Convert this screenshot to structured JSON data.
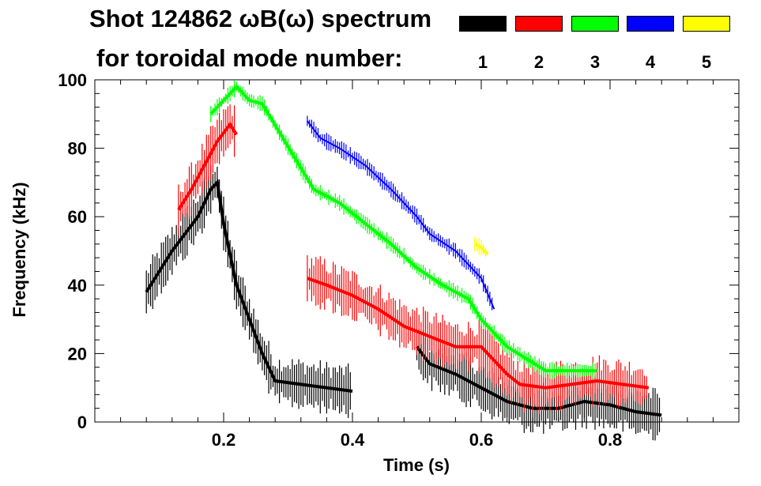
{
  "chart_data": {
    "type": "scatter",
    "title_line1": "Shot 124862 ωB(ω) spectrum",
    "title_line2": "for toroidal mode number:",
    "xlabel": "Time (s)",
    "ylabel": "Frequency (kHz)",
    "xlim": [
      0.0,
      1.0
    ],
    "ylim": [
      0,
      100
    ],
    "xticks": [
      0.2,
      0.4,
      0.6,
      0.8
    ],
    "xtick_labels": [
      "0.2",
      "0.4",
      "0.6",
      "0.8"
    ],
    "yticks": [
      0,
      20,
      40,
      60,
      80,
      100
    ],
    "ytick_labels": [
      "0",
      "20",
      "40",
      "60",
      "80",
      "100"
    ],
    "legend": [
      {
        "label": "1",
        "color": "#000000"
      },
      {
        "label": "2",
        "color": "#ff0000"
      },
      {
        "label": "3",
        "color": "#00ff00"
      },
      {
        "label": "4",
        "color": "#0000ff"
      },
      {
        "label": "5",
        "color": "#ffff00"
      }
    ],
    "series": [
      {
        "name": "n=1",
        "color": "#000000",
        "trend": [
          [
            0.08,
            38
          ],
          [
            0.1,
            44
          ],
          [
            0.12,
            50
          ],
          [
            0.14,
            55
          ],
          [
            0.16,
            60
          ],
          [
            0.18,
            68
          ],
          [
            0.19,
            70
          ],
          [
            0.2,
            58
          ],
          [
            0.22,
            40
          ],
          [
            0.26,
            20
          ],
          [
            0.28,
            12
          ],
          [
            0.32,
            11
          ],
          [
            0.36,
            10
          ],
          [
            0.4,
            9
          ]
        ],
        "trend2": [
          [
            0.5,
            22
          ],
          [
            0.52,
            17
          ],
          [
            0.56,
            14
          ],
          [
            0.6,
            10
          ],
          [
            0.64,
            6
          ],
          [
            0.68,
            4
          ],
          [
            0.72,
            4
          ],
          [
            0.76,
            6
          ],
          [
            0.8,
            5
          ],
          [
            0.84,
            3
          ],
          [
            0.88,
            2
          ]
        ]
      },
      {
        "name": "n=2",
        "color": "#ff0000",
        "trend": [
          [
            0.13,
            62
          ],
          [
            0.15,
            68
          ],
          [
            0.17,
            75
          ],
          [
            0.19,
            82
          ],
          [
            0.21,
            87
          ],
          [
            0.22,
            84
          ]
        ],
        "trend2": [
          [
            0.33,
            42
          ],
          [
            0.36,
            40
          ],
          [
            0.4,
            37
          ],
          [
            0.44,
            33
          ],
          [
            0.48,
            28
          ],
          [
            0.52,
            25
          ],
          [
            0.56,
            22
          ],
          [
            0.6,
            22
          ],
          [
            0.62,
            18
          ],
          [
            0.64,
            14
          ],
          [
            0.66,
            11
          ],
          [
            0.7,
            10
          ],
          [
            0.74,
            11
          ],
          [
            0.78,
            12
          ],
          [
            0.82,
            11
          ],
          [
            0.86,
            10
          ]
        ]
      },
      {
        "name": "n=3",
        "color": "#00ff00",
        "trend": [
          [
            0.18,
            90
          ],
          [
            0.2,
            94
          ],
          [
            0.22,
            98
          ],
          [
            0.24,
            94
          ],
          [
            0.26,
            93
          ],
          [
            0.34,
            68
          ],
          [
            0.38,
            64
          ],
          [
            0.42,
            58
          ],
          [
            0.46,
            52
          ],
          [
            0.5,
            45
          ],
          [
            0.54,
            40
          ],
          [
            0.58,
            36
          ],
          [
            0.6,
            30
          ],
          [
            0.64,
            22
          ],
          [
            0.7,
            15
          ],
          [
            0.78,
            15
          ]
        ]
      },
      {
        "name": "n=4",
        "color": "#0000ff",
        "trend": [
          [
            0.33,
            88
          ],
          [
            0.35,
            83
          ],
          [
            0.38,
            80
          ],
          [
            0.42,
            75
          ],
          [
            0.46,
            68
          ],
          [
            0.5,
            60
          ],
          [
            0.52,
            55
          ],
          [
            0.56,
            50
          ],
          [
            0.6,
            42
          ],
          [
            0.62,
            33
          ]
        ]
      },
      {
        "name": "n=5",
        "color": "#ffff00",
        "trend": [
          [
            0.59,
            52
          ],
          [
            0.6,
            51
          ],
          [
            0.61,
            49
          ]
        ]
      }
    ]
  }
}
